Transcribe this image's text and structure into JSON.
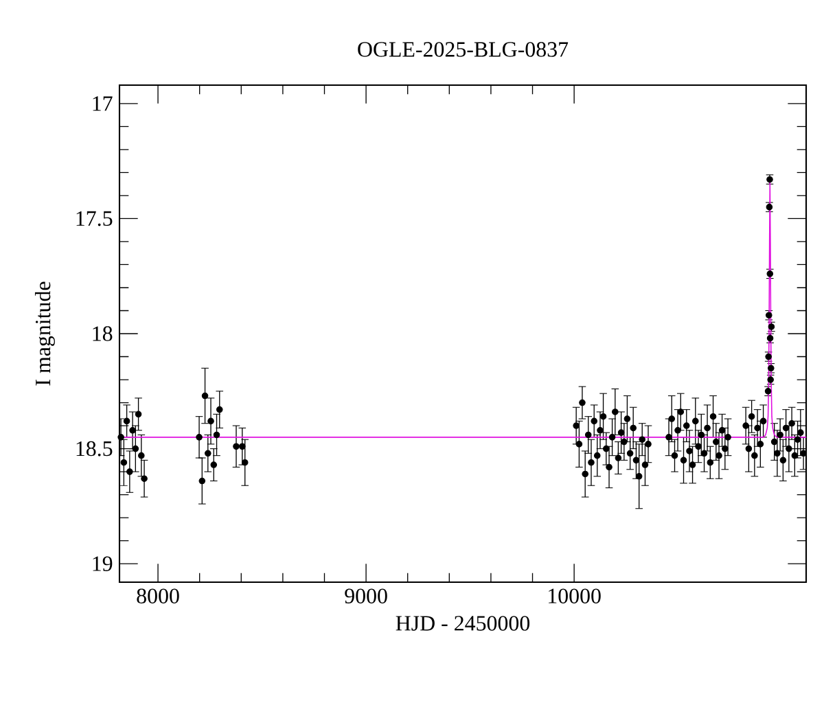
{
  "chart_data": {
    "type": "scatter",
    "title": "OGLE-2025-BLG-0837",
    "xlabel": "HJD - 2450000",
    "ylabel": "I magnitude",
    "xlim": [
      7815,
      11115
    ],
    "xticks": [
      8000,
      9000,
      10000
    ],
    "ylim": [
      19.08,
      16.92
    ],
    "yticks": [
      17,
      17.5,
      18,
      18.5,
      19
    ],
    "series": [
      {
        "color": "#000000",
        "marker": "circle",
        "x": [
          7822,
          7836,
          7850,
          7864,
          7878,
          7892,
          7906,
          7920,
          7934,
          8198,
          8212,
          8226,
          8240,
          8254,
          8268,
          8282,
          8296,
          8376,
          8405,
          8418,
          10010,
          10024,
          10039,
          10053,
          10068,
          10082,
          10096,
          10111,
          10125,
          10140,
          10154,
          10168,
          10183,
          10197,
          10212,
          10226,
          10240,
          10255,
          10269,
          10284,
          10298,
          10312,
          10327,
          10341,
          10356,
          10455,
          10469,
          10483,
          10498,
          10512,
          10526,
          10540,
          10554,
          10569,
          10583,
          10597,
          10611,
          10625,
          10640,
          10654,
          10668,
          10682,
          10696,
          10711,
          10725,
          10739,
          10825,
          10839,
          10853,
          10867,
          10881,
          10895,
          10909,
          10932,
          10934,
          10936,
          10938,
          10940,
          10941,
          10942,
          10944,
          10946,
          10948,
          10962,
          10976,
          10990,
          11004,
          11018,
          11032,
          11046,
          11060,
          11074,
          11088,
          11102
        ],
        "values": [
          18.45,
          18.56,
          18.38,
          18.6,
          18.42,
          18.5,
          18.35,
          18.53,
          18.63,
          18.45,
          18.64,
          18.27,
          18.52,
          18.38,
          18.57,
          18.44,
          18.33,
          18.49,
          18.49,
          18.56,
          18.4,
          18.48,
          18.3,
          18.61,
          18.44,
          18.56,
          18.38,
          18.53,
          18.42,
          18.36,
          18.5,
          18.58,
          18.45,
          18.34,
          18.54,
          18.43,
          18.47,
          18.37,
          18.52,
          18.41,
          18.55,
          18.62,
          18.46,
          18.57,
          18.48,
          18.45,
          18.37,
          18.53,
          18.42,
          18.34,
          18.55,
          18.4,
          18.51,
          18.57,
          18.38,
          18.49,
          18.44,
          18.52,
          18.41,
          18.56,
          18.36,
          18.47,
          18.53,
          18.42,
          18.5,
          18.45,
          18.4,
          18.5,
          18.36,
          18.53,
          18.41,
          18.48,
          18.38,
          18.25,
          18.1,
          17.92,
          17.45,
          17.33,
          17.74,
          18.02,
          18.2,
          18.15,
          17.97,
          18.47,
          18.52,
          18.44,
          18.55,
          18.41,
          18.5,
          18.39,
          18.53,
          18.46,
          18.43,
          18.52
        ],
        "errors": [
          0.08,
          0.1,
          0.07,
          0.09,
          0.08,
          0.1,
          0.07,
          0.09,
          0.08,
          0.09,
          0.1,
          0.12,
          0.08,
          0.1,
          0.07,
          0.09,
          0.08,
          0.09,
          0.08,
          0.1,
          0.08,
          0.1,
          0.07,
          0.1,
          0.08,
          0.1,
          0.07,
          0.09,
          0.08,
          0.1,
          0.07,
          0.09,
          0.08,
          0.1,
          0.07,
          0.09,
          0.08,
          0.1,
          0.07,
          0.09,
          0.08,
          0.14,
          0.07,
          0.09,
          0.08,
          0.08,
          0.1,
          0.07,
          0.09,
          0.08,
          0.1,
          0.07,
          0.09,
          0.08,
          0.1,
          0.07,
          0.09,
          0.08,
          0.1,
          0.07,
          0.09,
          0.08,
          0.1,
          0.07,
          0.09,
          0.08,
          0.08,
          0.1,
          0.07,
          0.09,
          0.08,
          0.1,
          0.07,
          0.02,
          0.02,
          0.02,
          0.02,
          0.02,
          0.02,
          0.02,
          0.02,
          0.02,
          0.02,
          0.08,
          0.1,
          0.07,
          0.09,
          0.08,
          0.1,
          0.07,
          0.09,
          0.08,
          0.1,
          0.07
        ]
      },
      {
        "type": "line",
        "color": "#e010e0",
        "x": [
          7815,
          10910,
          10920,
          10928,
          10932,
          10935,
          10937,
          10939,
          10941,
          10943,
          10945,
          10947,
          10950,
          10954,
          10962,
          10975,
          11115
        ],
        "values": [
          18.45,
          18.45,
          18.44,
          18.41,
          18.36,
          18.2,
          17.95,
          17.6,
          17.34,
          17.6,
          17.95,
          18.2,
          18.36,
          18.41,
          18.44,
          18.45,
          18.45
        ]
      }
    ]
  }
}
